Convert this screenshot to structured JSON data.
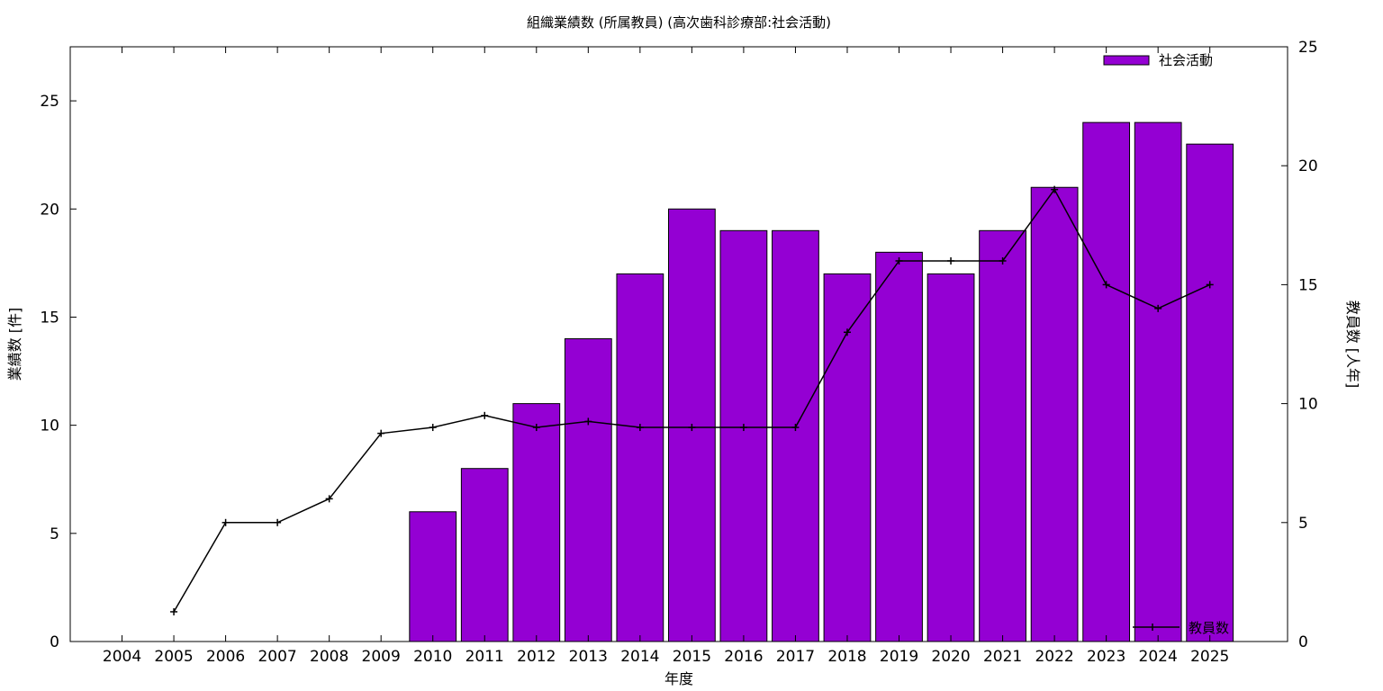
{
  "chart_data": {
    "type": "bar",
    "title": "組織業績数 (所属教員) (高次歯科診療部:社会活動)",
    "xlabel": "年度",
    "ylabel": "業績数 [件]",
    "y2label": "教員数 [人年]",
    "categories": [
      "2004",
      "2005",
      "2006",
      "2007",
      "2008",
      "2009",
      "2010",
      "2011",
      "2012",
      "2013",
      "2014",
      "2015",
      "2016",
      "2017",
      "2018",
      "2019",
      "2020",
      "2021",
      "2022",
      "2023",
      "2024",
      "2025"
    ],
    "ylim": [
      0,
      27.5
    ],
    "y2lim": [
      0,
      25
    ],
    "yticks": [
      0,
      5,
      10,
      15,
      20,
      25
    ],
    "y2ticks": [
      0,
      5,
      10,
      15,
      20,
      25
    ],
    "grid": false,
    "series": [
      {
        "name": "社会活動",
        "type": "bar",
        "axis": "left",
        "color": "#9400D3",
        "values": [
          null,
          null,
          null,
          null,
          null,
          null,
          6,
          8,
          11,
          14,
          17,
          20,
          19,
          19,
          17,
          18,
          17,
          19,
          21,
          24,
          24,
          23
        ]
      },
      {
        "name": "教員数",
        "type": "line",
        "axis": "right",
        "color": "#000000",
        "values": [
          null,
          1.25,
          5,
          5,
          6,
          8.75,
          9,
          9.5,
          9,
          9.25,
          9,
          9,
          9,
          9,
          13,
          16,
          16,
          16,
          19,
          15,
          14,
          15
        ]
      }
    ],
    "legend": {
      "bar_position": "top-right",
      "line_position": "bottom-right"
    }
  }
}
